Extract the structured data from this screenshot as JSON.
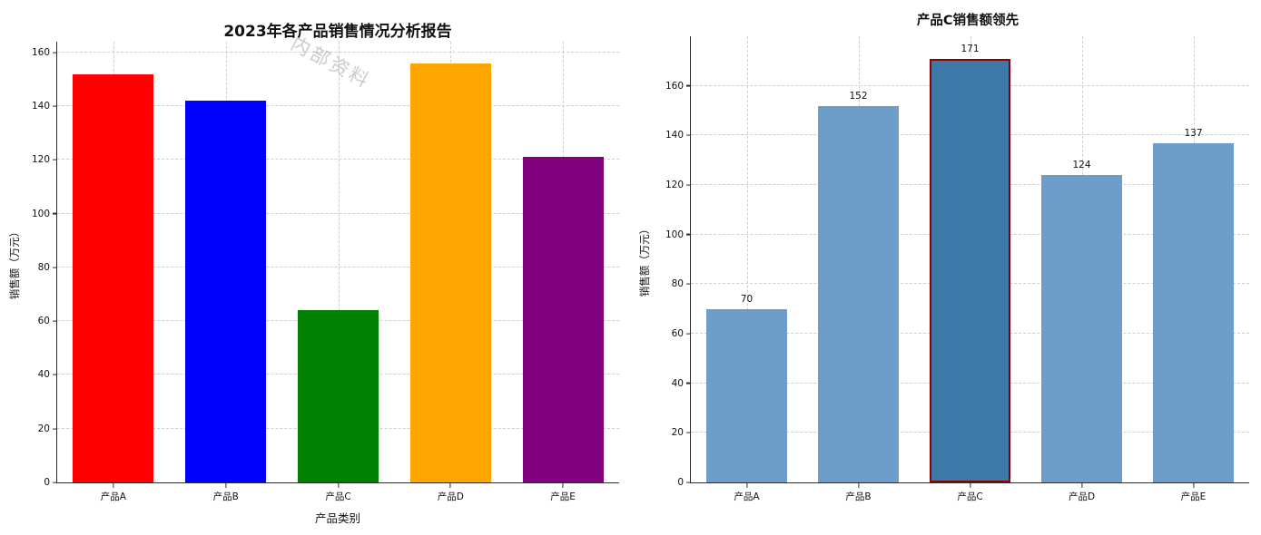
{
  "page": {
    "background": "#ffffff"
  },
  "chart_data": [
    {
      "type": "bar",
      "title": "2023年各产品销售情况分析报告",
      "xlabel": "产品类别",
      "ylabel": "销售额（万元）",
      "categories": [
        "产品A",
        "产品B",
        "产品C",
        "产品D",
        "产品E"
      ],
      "values": [
        152,
        142,
        64,
        156,
        121
      ],
      "colors": [
        "#ff0000",
        "#0000ff",
        "#008000",
        "#ffa500",
        "#800080"
      ],
      "ylim": [
        0,
        164
      ],
      "yticks": [
        0,
        20,
        40,
        60,
        80,
        100,
        120,
        140,
        160
      ],
      "grid": "dashed-both-axes",
      "legend": "none",
      "show_value_labels": false,
      "watermark": "内部资料"
    },
    {
      "type": "bar",
      "title": "产品C销售额领先",
      "xlabel": "",
      "ylabel": "销售额（万元）",
      "categories": [
        "产品A",
        "产品B",
        "产品C",
        "产品D",
        "产品E"
      ],
      "values": [
        70,
        152,
        171,
        124,
        137
      ],
      "colors": [
        "#6d9eca",
        "#6d9eca",
        "#3d78a8",
        "#6d9eca",
        "#6d9eca"
      ],
      "highlight": {
        "index": 2,
        "category": "产品C",
        "border_color": "#8b0000"
      },
      "ylim": [
        0,
        180
      ],
      "yticks": [
        0,
        20,
        40,
        60,
        80,
        100,
        120,
        140,
        160
      ],
      "grid": "dashed-both-axes",
      "legend": "none",
      "show_value_labels": true
    }
  ]
}
